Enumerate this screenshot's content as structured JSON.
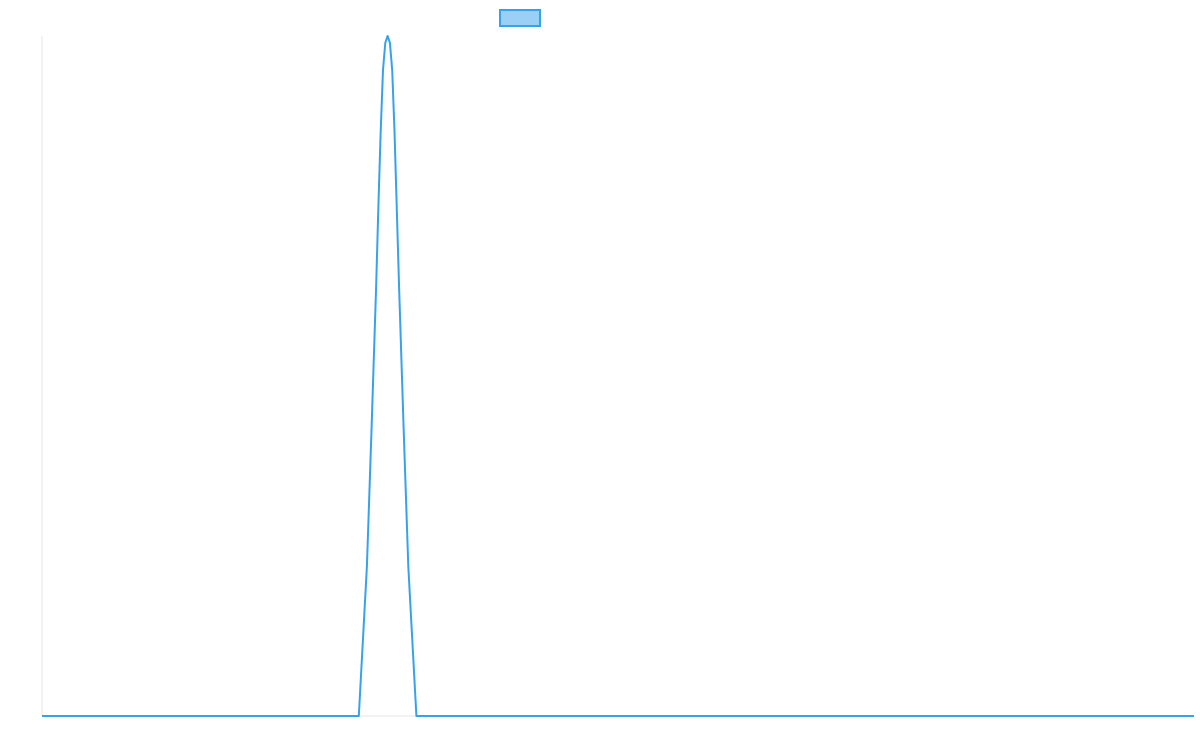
{
  "chart_data": {
    "type": "line",
    "title": "",
    "xlabel": "",
    "ylabel": "",
    "grid": false,
    "legend": "top-center",
    "x": [
      0,
      275,
      282,
      286,
      290,
      292,
      294,
      296,
      298,
      300,
      302,
      304,
      306,
      310,
      314,
      318,
      325,
      1000
    ],
    "series": [
      {
        "values": [
          0,
          0,
          0.22,
          0.42,
          0.63,
          0.75,
          0.86,
          0.95,
          0.99,
          1.0,
          0.99,
          0.95,
          0.86,
          0.63,
          0.42,
          0.22,
          0,
          0
        ]
      }
    ],
    "xlim": [
      0,
      1000
    ],
    "ylim": [
      0,
      1
    ],
    "colors": {
      "line": "#36a2eb",
      "legend_fill": "#9ad0f5",
      "axis": "#e6e6e6"
    }
  }
}
